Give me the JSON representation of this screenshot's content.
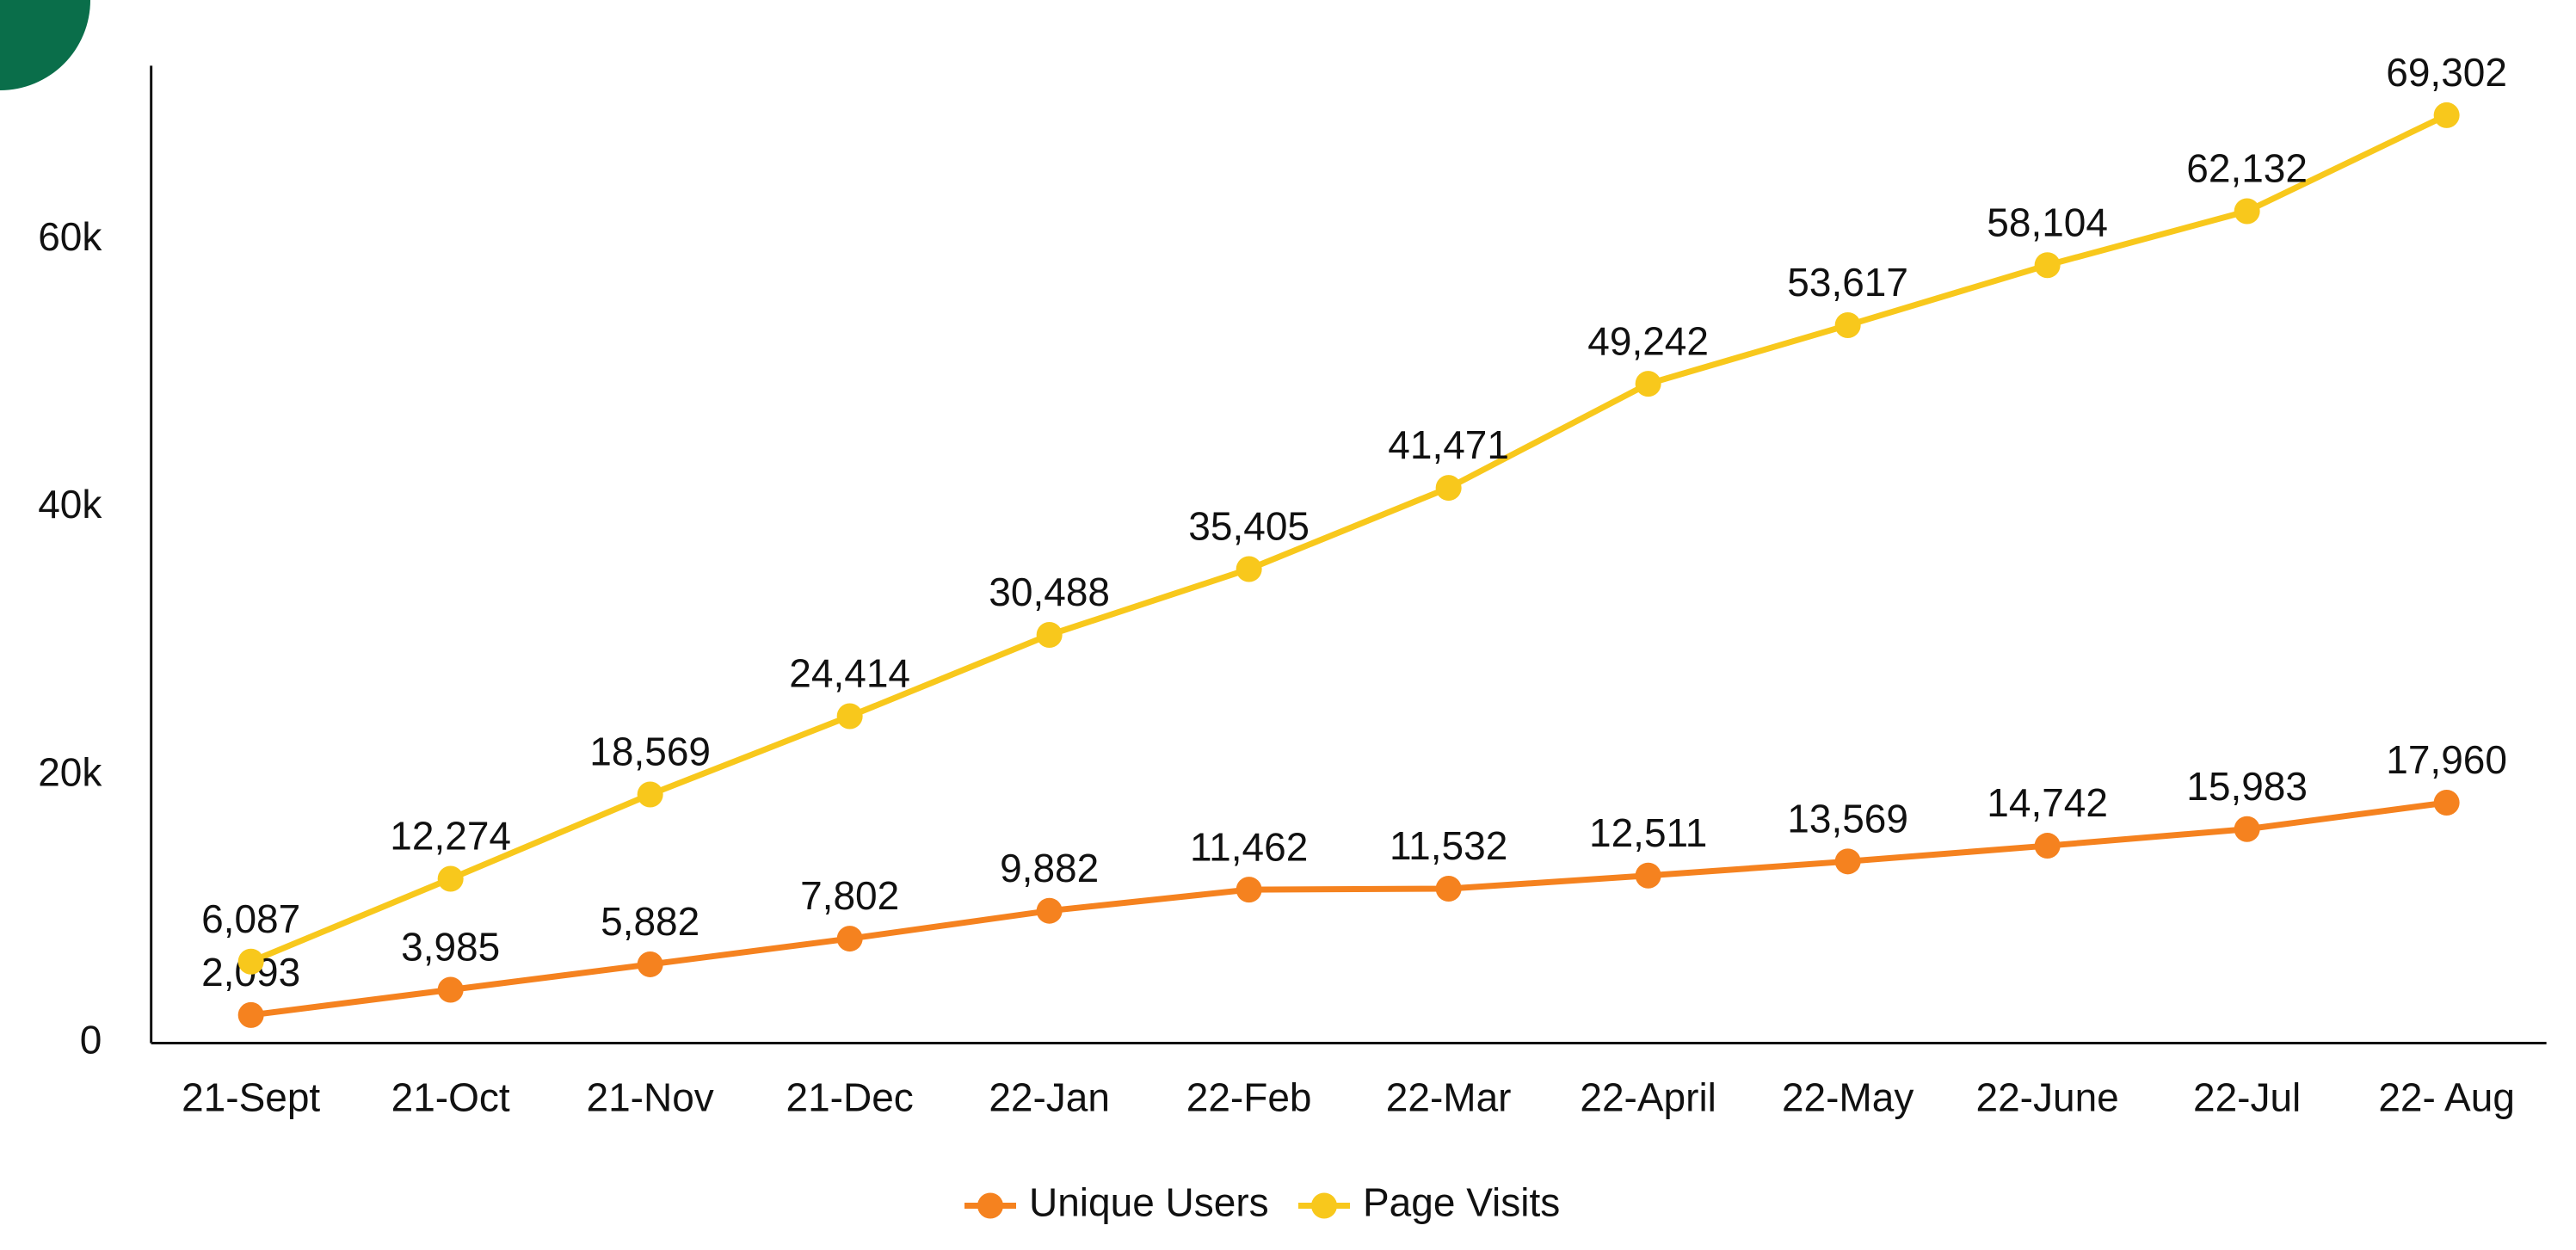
{
  "chart_data": {
    "type": "line",
    "categories": [
      "21-Sept",
      "21-Oct",
      "21-Nov",
      "21-Dec",
      "22-Jan",
      "22-Feb",
      "22-Mar",
      "22-April",
      "22-May",
      "22-June",
      "22-Jul",
      "22- Aug"
    ],
    "series": [
      {
        "name": "Unique Users",
        "color": "#f5821f",
        "values": [
          2093,
          3985,
          5882,
          7802,
          9882,
          11462,
          11532,
          12511,
          13569,
          14742,
          15983,
          17960
        ],
        "value_labels": [
          "2,093",
          "3,985",
          "5,882",
          "7,802",
          "9,882",
          "11,462",
          "11,532",
          "12,511",
          "13,569",
          "14,742",
          "15,983",
          "17,960"
        ]
      },
      {
        "name": "Page Visits",
        "color": "#f8c81c",
        "values": [
          6087,
          12274,
          18569,
          24414,
          30488,
          35405,
          41471,
          49242,
          53617,
          58104,
          62132,
          69302
        ],
        "value_labels": [
          "6,087",
          "12,274",
          "18,569",
          "24,414",
          "30,488",
          "35,405",
          "41,471",
          "49,242",
          "53,617",
          "58,104",
          "62,132",
          "69,302"
        ]
      }
    ],
    "ylim": [
      0,
      73000
    ],
    "yticks": [
      0,
      {
        "value": 20000,
        "label": "20k"
      },
      {
        "value": 40000,
        "label": "40k"
      },
      {
        "value": 60000,
        "label": "60k"
      }
    ],
    "grid": false,
    "legend": "bottom"
  }
}
